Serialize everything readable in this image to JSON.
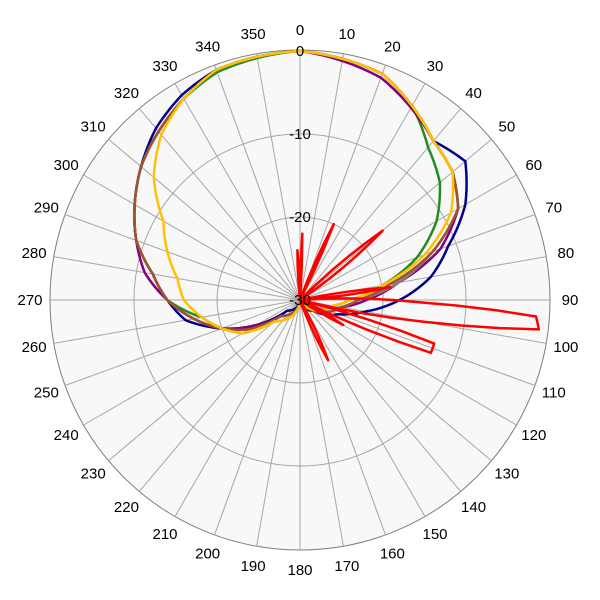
{
  "chart_data": {
    "type": "polar-line",
    "title": "",
    "angle_ticks": [
      "0",
      "10",
      "20",
      "30",
      "40",
      "50",
      "60",
      "70",
      "80",
      "90",
      "100",
      "110",
      "120",
      "130",
      "140",
      "150",
      "160",
      "170",
      "180",
      "190",
      "200",
      "210",
      "220",
      "230",
      "240",
      "250",
      "260",
      "270",
      "280",
      "290",
      "300",
      "310",
      "320",
      "330",
      "340",
      "350"
    ],
    "radial_range": [
      -30,
      0
    ],
    "radial_ticks": [
      {
        "value": 0,
        "label": "0"
      },
      {
        "value": -10,
        "label": "-10"
      },
      {
        "value": -20,
        "label": "-20"
      },
      {
        "value": -30,
        "label": "-30"
      }
    ],
    "outer_ring_value": 0,
    "grid": true,
    "series": [
      {
        "color": "#00008b",
        "points": [
          [
            0,
            0
          ],
          [
            20,
            -1
          ],
          [
            40,
            -5
          ],
          [
            50,
            -4
          ],
          [
            60,
            -7
          ],
          [
            70,
            -11
          ],
          [
            80,
            -14
          ],
          [
            90,
            -18
          ],
          [
            100,
            -22
          ],
          [
            110,
            -25
          ],
          [
            130,
            -28
          ],
          [
            180,
            -30
          ],
          [
            230,
            -28
          ],
          [
            240,
            -24
          ],
          [
            250,
            -20
          ],
          [
            260,
            -16
          ],
          [
            270,
            -14
          ],
          [
            280,
            -12
          ],
          [
            290,
            -9
          ],
          [
            300,
            -7
          ],
          [
            310,
            -5
          ],
          [
            320,
            -3
          ],
          [
            330,
            -1.5
          ],
          [
            340,
            -0.5
          ]
        ]
      },
      {
        "color": "#228b22",
        "points": [
          [
            0,
            0
          ],
          [
            20,
            -1
          ],
          [
            30,
            -3
          ],
          [
            40,
            -6
          ],
          [
            50,
            -8
          ],
          [
            60,
            -11
          ],
          [
            70,
            -15
          ],
          [
            80,
            -20
          ],
          [
            90,
            -24
          ],
          [
            100,
            -26
          ],
          [
            140,
            -29
          ],
          [
            180,
            -30
          ],
          [
            230,
            -27
          ],
          [
            240,
            -23
          ],
          [
            250,
            -20
          ],
          [
            260,
            -18
          ],
          [
            270,
            -14
          ],
          [
            280,
            -12
          ],
          [
            290,
            -9
          ],
          [
            300,
            -7
          ],
          [
            310,
            -5
          ],
          [
            320,
            -3.5
          ],
          [
            330,
            -2
          ],
          [
            340,
            -0.8
          ]
        ]
      },
      {
        "color": "#800080",
        "points": [
          [
            0,
            0
          ],
          [
            20,
            -1.5
          ],
          [
            40,
            -5
          ],
          [
            50,
            -6
          ],
          [
            60,
            -8
          ],
          [
            70,
            -12
          ],
          [
            80,
            -18
          ],
          [
            90,
            -22
          ],
          [
            100,
            -25
          ],
          [
            140,
            -29
          ],
          [
            180,
            -30
          ],
          [
            230,
            -27
          ],
          [
            240,
            -24
          ],
          [
            250,
            -20
          ],
          [
            260,
            -17
          ],
          [
            270,
            -14
          ],
          [
            280,
            -11
          ],
          [
            290,
            -9
          ],
          [
            300,
            -7
          ],
          [
            310,
            -5
          ],
          [
            320,
            -3.5
          ],
          [
            330,
            -2
          ],
          [
            340,
            -0.5
          ]
        ]
      },
      {
        "color": "#808080",
        "points": [
          [
            0,
            0
          ],
          [
            20,
            -1
          ],
          [
            40,
            -5
          ],
          [
            50,
            -6
          ],
          [
            60,
            -8
          ],
          [
            70,
            -13
          ],
          [
            80,
            -18
          ],
          [
            90,
            -23
          ],
          [
            100,
            -25
          ],
          [
            140,
            -29
          ],
          [
            180,
            -30
          ],
          [
            230,
            -26
          ],
          [
            240,
            -22
          ],
          [
            250,
            -20
          ],
          [
            260,
            -17
          ],
          [
            270,
            -14
          ],
          [
            280,
            -12
          ],
          [
            290,
            -9
          ],
          [
            300,
            -7
          ],
          [
            310,
            -5
          ],
          [
            320,
            -3.5
          ],
          [
            330,
            -2
          ],
          [
            340,
            -0.5
          ]
        ]
      },
      {
        "color": "#a0522d",
        "points": [
          [
            0,
            0
          ],
          [
            20,
            -1
          ],
          [
            40,
            -5
          ],
          [
            50,
            -6
          ],
          [
            60,
            -8
          ],
          [
            70,
            -13
          ],
          [
            80,
            -19
          ],
          [
            90,
            -23
          ],
          [
            100,
            -25
          ],
          [
            140,
            -29
          ],
          [
            180,
            -30
          ],
          [
            230,
            -27
          ],
          [
            240,
            -23
          ],
          [
            250,
            -20
          ],
          [
            260,
            -17
          ],
          [
            270,
            -14
          ],
          [
            280,
            -12
          ],
          [
            290,
            -9
          ],
          [
            300,
            -7
          ],
          [
            310,
            -5
          ],
          [
            320,
            -3.5
          ],
          [
            330,
            -2
          ],
          [
            340,
            -0.5
          ]
        ]
      },
      {
        "color": "#ffc000",
        "points": [
          [
            0,
            0
          ],
          [
            20,
            -1
          ],
          [
            40,
            -5
          ],
          [
            50,
            -6
          ],
          [
            60,
            -9
          ],
          [
            70,
            -14
          ],
          [
            80,
            -20
          ],
          [
            90,
            -24
          ],
          [
            100,
            -26
          ],
          [
            140,
            -29
          ],
          [
            180,
            -30
          ],
          [
            230,
            -26
          ],
          [
            240,
            -22
          ],
          [
            250,
            -20
          ],
          [
            260,
            -18
          ],
          [
            270,
            -16
          ],
          [
            280,
            -15
          ],
          [
            290,
            -13
          ],
          [
            300,
            -11
          ],
          [
            310,
            -7
          ],
          [
            320,
            -4
          ],
          [
            330,
            -2
          ],
          [
            340,
            -0.5
          ]
        ]
      },
      {
        "color": "#ff0000",
        "points": [
          [
            0,
            -30
          ],
          [
            2,
            -22
          ],
          [
            4,
            -30
          ],
          [
            20,
            -30
          ],
          [
            24,
            -20
          ],
          [
            27,
            -30
          ],
          [
            45,
            -30
          ],
          [
            50,
            -17
          ],
          [
            56,
            -30
          ],
          [
            78,
            -30
          ],
          [
            82,
            -19
          ],
          [
            86,
            -30
          ],
          [
            91,
            -16
          ],
          [
            94,
            -1.5
          ],
          [
            97,
            -1
          ],
          [
            100,
            -15
          ],
          [
            104,
            -30
          ],
          [
            108,
            -13
          ],
          [
            112,
            -13
          ],
          [
            116,
            -30
          ],
          [
            120,
            -24
          ],
          [
            124,
            -30
          ],
          [
            150,
            -30
          ],
          [
            155,
            -22
          ],
          [
            160,
            -30
          ],
          [
            354,
            -30
          ],
          [
            357,
            -24
          ],
          [
            360,
            -30
          ]
        ]
      }
    ]
  }
}
